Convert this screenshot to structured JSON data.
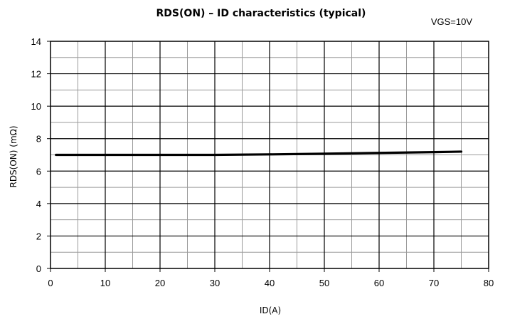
{
  "chart_data": {
    "type": "line",
    "title": "RDS(ON) – ID characteristics (typical)",
    "annotation": "VGS=10V",
    "xlabel": "ID(A)",
    "ylabel": "RDS(ON) (mΩ)",
    "xlim": [
      0,
      80
    ],
    "ylim": [
      0,
      14
    ],
    "x_ticks": [
      0,
      10,
      20,
      30,
      40,
      50,
      60,
      70,
      80
    ],
    "y_ticks": [
      0,
      2,
      4,
      6,
      8,
      10,
      12,
      14
    ],
    "x_minor_step": 5,
    "y_minor_step": 1,
    "grid": true,
    "series": [
      {
        "x": [
          1,
          10,
          20,
          30,
          40,
          50,
          60,
          70,
          75
        ],
        "y": [
          7.0,
          7.0,
          7.0,
          7.0,
          7.03,
          7.07,
          7.12,
          7.17,
          7.2
        ],
        "color": "#000000"
      }
    ]
  }
}
